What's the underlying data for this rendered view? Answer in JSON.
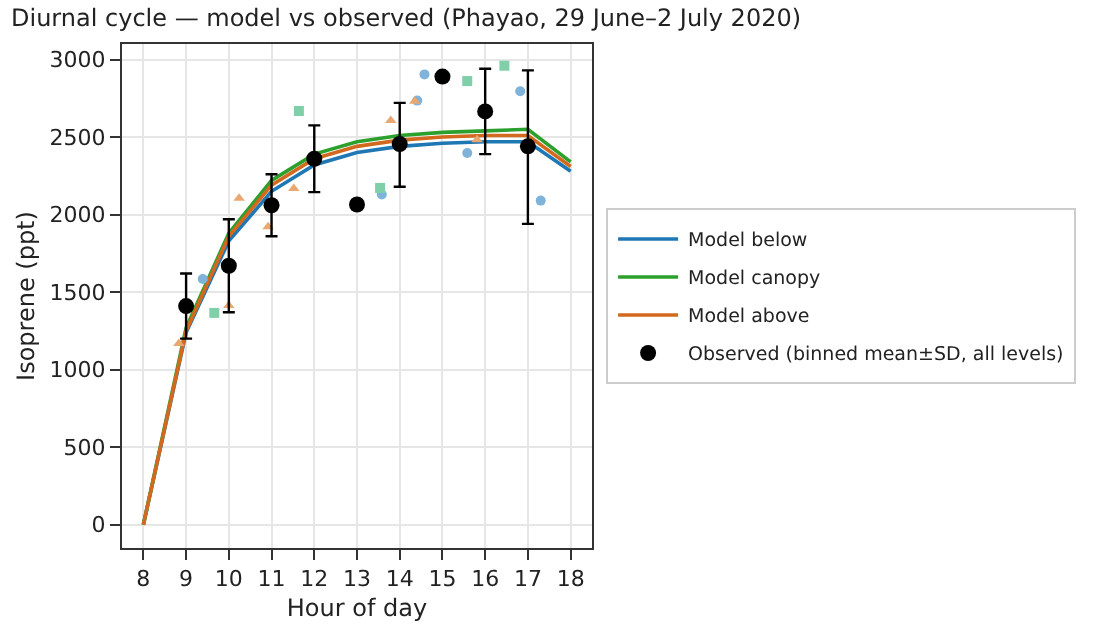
{
  "chart_data": {
    "type": "line",
    "title": "Diurnal cycle — model vs observed (Phayao, 29 June–2 July 2020)",
    "xlabel": "Hour of day",
    "ylabel": "Isoprene (ppt)",
    "xlim": [
      7.5,
      18.5
    ],
    "xticks": [
      8,
      9,
      10,
      11,
      12,
      13,
      14,
      15,
      16,
      17,
      18
    ],
    "ylim": [
      -150,
      3100
    ],
    "yticks": [
      0,
      500,
      1000,
      1500,
      2000,
      2500,
      3000
    ],
    "grid": true,
    "legend": "right",
    "line_style": "solid",
    "marker": "none",
    "series": [
      {
        "name": "Model below",
        "color": "#1f77b4",
        "x": [
          8,
          9,
          10,
          11,
          12,
          13,
          14,
          15,
          16,
          17,
          18
        ],
        "values": [
          0,
          1240,
          1830,
          2150,
          2320,
          2400,
          2440,
          2460,
          2470,
          2470,
          2280
        ]
      },
      {
        "name": "Model canopy",
        "color": "#2ca02c",
        "x": [
          8,
          9,
          10,
          11,
          12,
          13,
          14,
          15,
          16,
          17,
          18
        ],
        "values": [
          0,
          1270,
          1880,
          2220,
          2390,
          2470,
          2510,
          2530,
          2540,
          2550,
          2340
        ]
      },
      {
        "name": "Model above",
        "color": "#d2691e",
        "x": [
          8,
          9,
          10,
          11,
          12,
          13,
          14,
          15,
          16,
          17,
          18
        ],
        "values": [
          0,
          1250,
          1860,
          2190,
          2360,
          2440,
          2480,
          2500,
          2510,
          2510,
          2310
        ]
      },
      {
        "type": "scatter",
        "marker": "circle",
        "color": "#7fb3d9",
        "x": [
          9.39,
          13.58,
          14.41,
          14.58,
          15.58,
          16.82,
          17.3
        ],
        "values": [
          1585,
          2129,
          2735,
          2904,
          2397,
          2795,
          2090
        ]
      },
      {
        "type": "scatter",
        "marker": "square",
        "color": "#7fcfa8",
        "x": [
          9.66,
          11.64,
          13.54,
          15.58,
          16.45
        ],
        "values": [
          1366,
          2668,
          2172,
          2861,
          2960
        ]
      },
      {
        "type": "scatter",
        "marker": "triangle",
        "color": "#e8a870",
        "x": [
          8.83,
          10.0,
          10.24,
          10.92,
          11.52,
          13.79,
          14.35,
          15.81
        ],
        "values": [
          1169,
          1413,
          2105,
          1921,
          2169,
          2606,
          2731,
          2483
        ]
      },
      {
        "name": "Observed (binned mean±SD, all levels)",
        "type": "scatter",
        "marker": "circle",
        "color": "#000000",
        "x": [
          9,
          10,
          11,
          12,
          13,
          14,
          15,
          16,
          17
        ],
        "values": [
          1410,
          1670,
          2060,
          2360,
          2065,
          2455,
          2890,
          2665,
          2440
        ],
        "errors": [
          [
            1200,
            1620
          ],
          [
            1370,
            1970
          ],
          [
            1860,
            2260
          ],
          [
            2145,
            2575
          ],
          null,
          [
            2180,
            2720
          ],
          null,
          [
            2390,
            2940
          ],
          [
            1940,
            2930
          ]
        ]
      }
    ]
  }
}
